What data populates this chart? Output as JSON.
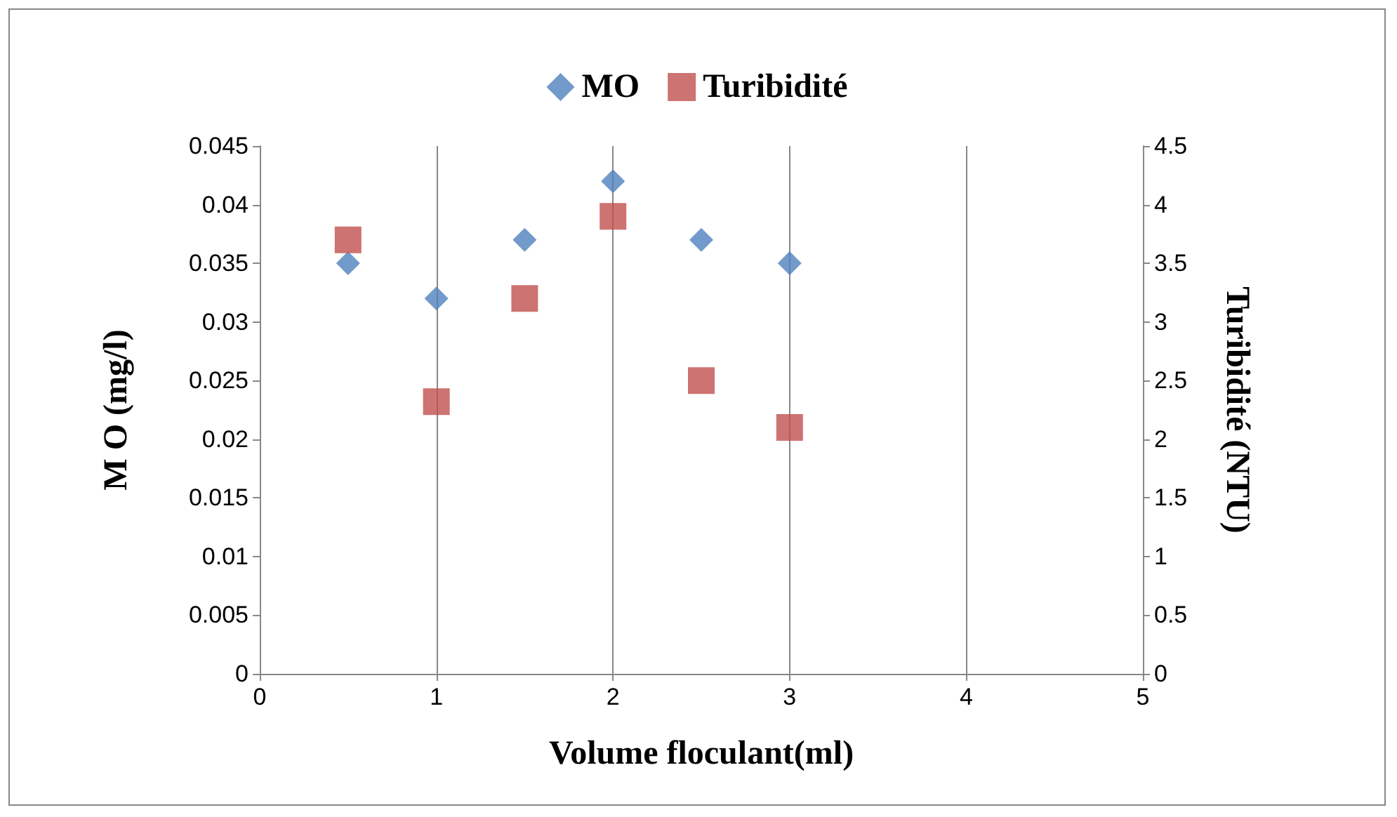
{
  "chart_data": {
    "type": "scatter",
    "xlabel": "Volume floculant(ml)",
    "ylabel": "M O (mg/l)",
    "y2label": "Turibidité (NTU)",
    "x": [
      0.5,
      1,
      1.5,
      2,
      2.5,
      3
    ],
    "series": [
      {
        "name": "MO",
        "color": "#4f81bd",
        "marker": "diamond",
        "values": [
          0.035,
          0.032,
          0.037,
          0.042,
          0.037,
          0.035
        ]
      },
      {
        "name": "Turibidité",
        "color": "#c0504d",
        "marker": "square",
        "axis": "y2",
        "values": [
          3.7,
          2.32,
          3.2,
          3.9,
          2.5,
          2.1
        ]
      }
    ],
    "xlim": [
      0,
      5
    ],
    "xticks": [
      0,
      1,
      2,
      3,
      4,
      5
    ],
    "ylim": [
      0,
      0.045
    ],
    "yticks": [
      0,
      0.005,
      0.01,
      0.015,
      0.02,
      0.025,
      0.03,
      0.035,
      0.04,
      0.045
    ],
    "y2lim": [
      0,
      4.5
    ],
    "y2ticks": [
      0,
      0.5,
      1,
      1.5,
      2,
      2.5,
      3,
      3.5,
      4,
      4.5
    ],
    "grid": "x",
    "legend": "top"
  }
}
